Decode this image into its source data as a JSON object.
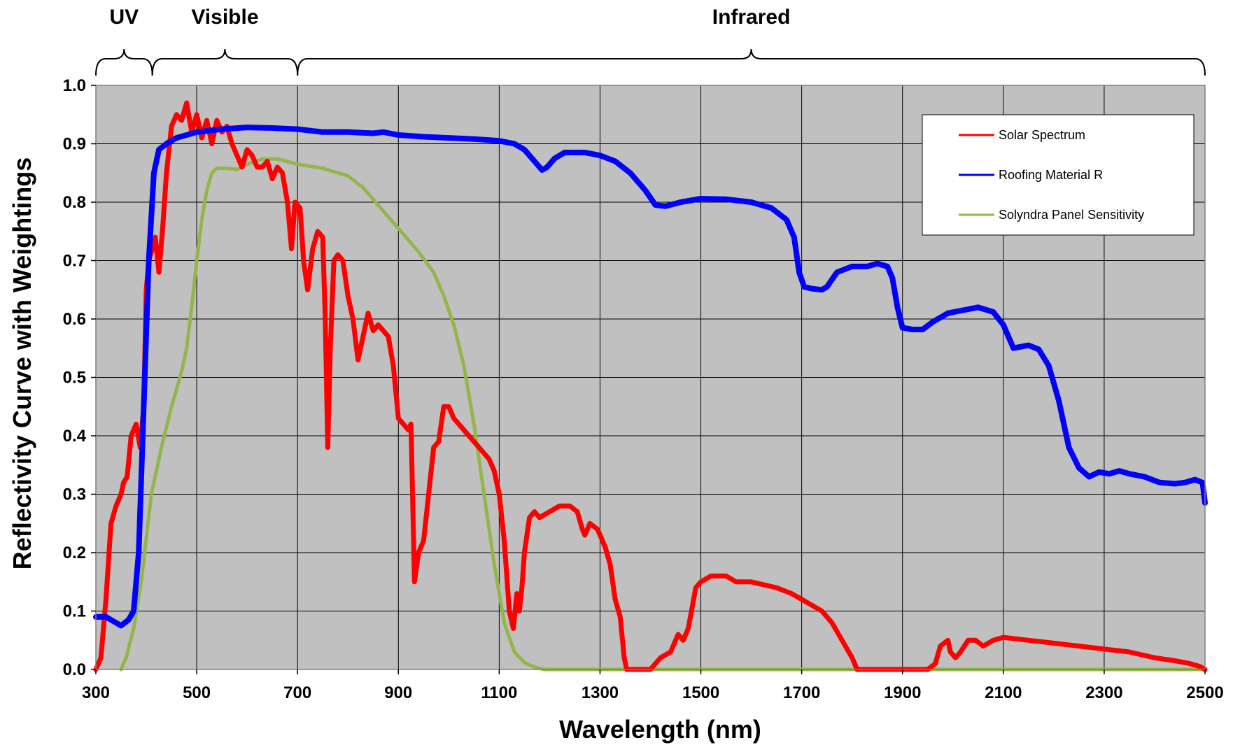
{
  "chart_data": {
    "type": "line",
    "xlabel": "Wavelength (nm)",
    "ylabel": "Reflectivity Curve with Weightings",
    "xlim": [
      300,
      2500
    ],
    "ylim": [
      0.0,
      1.0
    ],
    "x_ticks": [
      "300",
      "500",
      "700",
      "900",
      "1100",
      "1300",
      "1500",
      "1700",
      "1900",
      "2100",
      "2300",
      "2500"
    ],
    "y_ticks": [
      "0.0",
      "0.1",
      "0.2",
      "0.3",
      "0.4",
      "0.5",
      "0.6",
      "0.7",
      "0.8",
      "0.9",
      "1.0"
    ],
    "grid": true,
    "plot_background": "#c0c0c0",
    "legend_position": "top-right",
    "bands": [
      {
        "label": "UV",
        "from": 300,
        "to": 412
      },
      {
        "label": "Visible",
        "from": 412,
        "to": 700
      },
      {
        "label": "Infrared",
        "from": 700,
        "to": 2500
      }
    ],
    "series": [
      {
        "name": "Solar Spectrum",
        "color": "#ff0000",
        "points": [
          [
            300,
            0.0
          ],
          [
            310,
            0.02
          ],
          [
            320,
            0.12
          ],
          [
            330,
            0.25
          ],
          [
            340,
            0.28
          ],
          [
            350,
            0.3
          ],
          [
            355,
            0.32
          ],
          [
            362,
            0.33
          ],
          [
            370,
            0.4
          ],
          [
            380,
            0.42
          ],
          [
            388,
            0.38
          ],
          [
            395,
            0.45
          ],
          [
            400,
            0.65
          ],
          [
            405,
            0.7
          ],
          [
            412,
            0.72
          ],
          [
            418,
            0.74
          ],
          [
            425,
            0.68
          ],
          [
            432,
            0.75
          ],
          [
            440,
            0.85
          ],
          [
            450,
            0.93
          ],
          [
            460,
            0.95
          ],
          [
            470,
            0.94
          ],
          [
            480,
            0.97
          ],
          [
            490,
            0.92
          ],
          [
            500,
            0.95
          ],
          [
            510,
            0.91
          ],
          [
            520,
            0.94
          ],
          [
            530,
            0.9
          ],
          [
            540,
            0.94
          ],
          [
            550,
            0.92
          ],
          [
            560,
            0.93
          ],
          [
            570,
            0.9
          ],
          [
            580,
            0.88
          ],
          [
            590,
            0.86
          ],
          [
            600,
            0.89
          ],
          [
            610,
            0.88
          ],
          [
            620,
            0.86
          ],
          [
            630,
            0.86
          ],
          [
            640,
            0.87
          ],
          [
            650,
            0.84
          ],
          [
            660,
            0.86
          ],
          [
            670,
            0.85
          ],
          [
            680,
            0.8
          ],
          [
            688,
            0.72
          ],
          [
            695,
            0.8
          ],
          [
            705,
            0.79
          ],
          [
            712,
            0.7
          ],
          [
            720,
            0.65
          ],
          [
            730,
            0.72
          ],
          [
            740,
            0.75
          ],
          [
            750,
            0.74
          ],
          [
            755,
            0.6
          ],
          [
            760,
            0.38
          ],
          [
            765,
            0.55
          ],
          [
            772,
            0.7
          ],
          [
            780,
            0.71
          ],
          [
            790,
            0.7
          ],
          [
            800,
            0.64
          ],
          [
            810,
            0.6
          ],
          [
            820,
            0.53
          ],
          [
            830,
            0.57
          ],
          [
            840,
            0.61
          ],
          [
            850,
            0.58
          ],
          [
            860,
            0.59
          ],
          [
            870,
            0.58
          ],
          [
            880,
            0.57
          ],
          [
            890,
            0.52
          ],
          [
            900,
            0.43
          ],
          [
            910,
            0.42
          ],
          [
            920,
            0.41
          ],
          [
            925,
            0.42
          ],
          [
            932,
            0.15
          ],
          [
            940,
            0.2
          ],
          [
            950,
            0.22
          ],
          [
            960,
            0.3
          ],
          [
            970,
            0.38
          ],
          [
            980,
            0.39
          ],
          [
            990,
            0.45
          ],
          [
            1000,
            0.45
          ],
          [
            1010,
            0.43
          ],
          [
            1030,
            0.41
          ],
          [
            1050,
            0.39
          ],
          [
            1070,
            0.37
          ],
          [
            1080,
            0.36
          ],
          [
            1090,
            0.34
          ],
          [
            1100,
            0.3
          ],
          [
            1110,
            0.22
          ],
          [
            1120,
            0.1
          ],
          [
            1128,
            0.07
          ],
          [
            1135,
            0.13
          ],
          [
            1140,
            0.1
          ],
          [
            1145,
            0.14
          ],
          [
            1150,
            0.2
          ],
          [
            1160,
            0.26
          ],
          [
            1170,
            0.27
          ],
          [
            1180,
            0.26
          ],
          [
            1200,
            0.27
          ],
          [
            1220,
            0.28
          ],
          [
            1240,
            0.28
          ],
          [
            1255,
            0.27
          ],
          [
            1265,
            0.24
          ],
          [
            1270,
            0.23
          ],
          [
            1280,
            0.25
          ],
          [
            1295,
            0.24
          ],
          [
            1310,
            0.21
          ],
          [
            1320,
            0.18
          ],
          [
            1330,
            0.12
          ],
          [
            1340,
            0.09
          ],
          [
            1348,
            0.02
          ],
          [
            1353,
            0.0
          ],
          [
            1400,
            0.0
          ],
          [
            1420,
            0.02
          ],
          [
            1440,
            0.03
          ],
          [
            1455,
            0.06
          ],
          [
            1465,
            0.05
          ],
          [
            1475,
            0.07
          ],
          [
            1490,
            0.14
          ],
          [
            1500,
            0.15
          ],
          [
            1520,
            0.16
          ],
          [
            1550,
            0.16
          ],
          [
            1570,
            0.15
          ],
          [
            1600,
            0.15
          ],
          [
            1650,
            0.14
          ],
          [
            1680,
            0.13
          ],
          [
            1700,
            0.12
          ],
          [
            1720,
            0.11
          ],
          [
            1740,
            0.1
          ],
          [
            1760,
            0.08
          ],
          [
            1780,
            0.05
          ],
          [
            1800,
            0.02
          ],
          [
            1810,
            0.0
          ],
          [
            1950,
            0.0
          ],
          [
            1965,
            0.01
          ],
          [
            1975,
            0.04
          ],
          [
            1990,
            0.05
          ],
          [
            1995,
            0.03
          ],
          [
            2005,
            0.02
          ],
          [
            2015,
            0.03
          ],
          [
            2030,
            0.05
          ],
          [
            2045,
            0.05
          ],
          [
            2060,
            0.04
          ],
          [
            2080,
            0.05
          ],
          [
            2100,
            0.055
          ],
          [
            2150,
            0.05
          ],
          [
            2200,
            0.045
          ],
          [
            2250,
            0.04
          ],
          [
            2300,
            0.035
          ],
          [
            2350,
            0.03
          ],
          [
            2400,
            0.02
          ],
          [
            2440,
            0.015
          ],
          [
            2470,
            0.01
          ],
          [
            2490,
            0.005
          ],
          [
            2500,
            0.0
          ]
        ]
      },
      {
        "name": "Roofing Material R",
        "color": "#0000ff",
        "points": [
          [
            300,
            0.09
          ],
          [
            320,
            0.09
          ],
          [
            340,
            0.08
          ],
          [
            350,
            0.075
          ],
          [
            365,
            0.085
          ],
          [
            375,
            0.1
          ],
          [
            385,
            0.2
          ],
          [
            395,
            0.45
          ],
          [
            405,
            0.7
          ],
          [
            415,
            0.85
          ],
          [
            425,
            0.89
          ],
          [
            440,
            0.9
          ],
          [
            460,
            0.91
          ],
          [
            500,
            0.92
          ],
          [
            550,
            0.925
          ],
          [
            600,
            0.928
          ],
          [
            650,
            0.927
          ],
          [
            700,
            0.925
          ],
          [
            750,
            0.92
          ],
          [
            800,
            0.92
          ],
          [
            850,
            0.918
          ],
          [
            870,
            0.92
          ],
          [
            900,
            0.915
          ],
          [
            950,
            0.912
          ],
          [
            1000,
            0.91
          ],
          [
            1050,
            0.908
          ],
          [
            1100,
            0.905
          ],
          [
            1130,
            0.9
          ],
          [
            1150,
            0.89
          ],
          [
            1170,
            0.87
          ],
          [
            1185,
            0.855
          ],
          [
            1195,
            0.86
          ],
          [
            1210,
            0.875
          ],
          [
            1230,
            0.885
          ],
          [
            1270,
            0.885
          ],
          [
            1300,
            0.88
          ],
          [
            1330,
            0.87
          ],
          [
            1360,
            0.85
          ],
          [
            1390,
            0.82
          ],
          [
            1410,
            0.795
          ],
          [
            1430,
            0.793
          ],
          [
            1460,
            0.8
          ],
          [
            1500,
            0.806
          ],
          [
            1550,
            0.805
          ],
          [
            1600,
            0.8
          ],
          [
            1640,
            0.79
          ],
          [
            1670,
            0.77
          ],
          [
            1685,
            0.74
          ],
          [
            1695,
            0.68
          ],
          [
            1705,
            0.655
          ],
          [
            1720,
            0.652
          ],
          [
            1740,
            0.65
          ],
          [
            1750,
            0.655
          ],
          [
            1770,
            0.68
          ],
          [
            1800,
            0.69
          ],
          [
            1830,
            0.69
          ],
          [
            1850,
            0.695
          ],
          [
            1870,
            0.69
          ],
          [
            1880,
            0.67
          ],
          [
            1890,
            0.62
          ],
          [
            1900,
            0.585
          ],
          [
            1920,
            0.582
          ],
          [
            1940,
            0.582
          ],
          [
            1960,
            0.595
          ],
          [
            1990,
            0.61
          ],
          [
            2020,
            0.615
          ],
          [
            2050,
            0.62
          ],
          [
            2080,
            0.612
          ],
          [
            2100,
            0.59
          ],
          [
            2120,
            0.55
          ],
          [
            2150,
            0.555
          ],
          [
            2170,
            0.548
          ],
          [
            2190,
            0.52
          ],
          [
            2210,
            0.46
          ],
          [
            2230,
            0.38
          ],
          [
            2250,
            0.345
          ],
          [
            2270,
            0.33
          ],
          [
            2290,
            0.338
          ],
          [
            2310,
            0.335
          ],
          [
            2330,
            0.34
          ],
          [
            2350,
            0.335
          ],
          [
            2380,
            0.33
          ],
          [
            2410,
            0.32
          ],
          [
            2440,
            0.318
          ],
          [
            2460,
            0.32
          ],
          [
            2480,
            0.325
          ],
          [
            2495,
            0.32
          ],
          [
            2500,
            0.285
          ]
        ]
      },
      {
        "name": "Solyndra Panel Sensitivity",
        "color": "#92b64a",
        "points": [
          [
            350,
            0.0
          ],
          [
            360,
            0.02
          ],
          [
            375,
            0.07
          ],
          [
            390,
            0.15
          ],
          [
            410,
            0.3
          ],
          [
            430,
            0.38
          ],
          [
            450,
            0.45
          ],
          [
            470,
            0.51
          ],
          [
            480,
            0.55
          ],
          [
            490,
            0.62
          ],
          [
            500,
            0.7
          ],
          [
            510,
            0.77
          ],
          [
            520,
            0.82
          ],
          [
            530,
            0.85
          ],
          [
            540,
            0.858
          ],
          [
            560,
            0.858
          ],
          [
            580,
            0.856
          ],
          [
            600,
            0.865
          ],
          [
            630,
            0.874
          ],
          [
            660,
            0.874
          ],
          [
            700,
            0.865
          ],
          [
            750,
            0.858
          ],
          [
            800,
            0.845
          ],
          [
            830,
            0.825
          ],
          [
            860,
            0.795
          ],
          [
            880,
            0.775
          ],
          [
            910,
            0.745
          ],
          [
            940,
            0.715
          ],
          [
            970,
            0.68
          ],
          [
            990,
            0.64
          ],
          [
            1010,
            0.59
          ],
          [
            1030,
            0.52
          ],
          [
            1050,
            0.42
          ],
          [
            1070,
            0.3
          ],
          [
            1090,
            0.18
          ],
          [
            1110,
            0.08
          ],
          [
            1130,
            0.03
          ],
          [
            1150,
            0.012
          ],
          [
            1170,
            0.004
          ],
          [
            1190,
            0.0
          ],
          [
            1200,
            0.0
          ],
          [
            2500,
            0.0
          ]
        ]
      }
    ]
  }
}
